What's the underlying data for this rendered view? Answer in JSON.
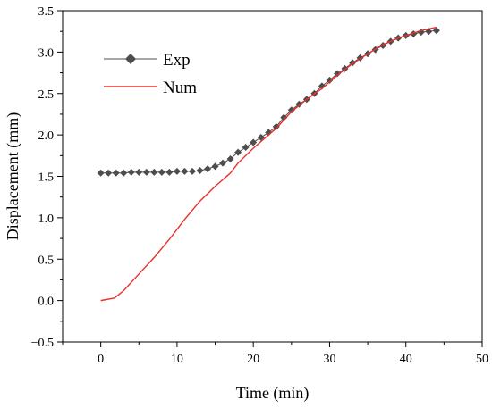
{
  "chart_data": {
    "type": "line",
    "xlabel": "Time (min)",
    "ylabel": "Displacement (mm)",
    "xlim": [
      -5,
      50
    ],
    "ylim": [
      -0.5,
      3.5
    ],
    "xticks": [
      0,
      10,
      20,
      30,
      40,
      50
    ],
    "yticks": [
      -0.5,
      0.0,
      0.5,
      1.0,
      1.5,
      2.0,
      2.5,
      3.0,
      3.5
    ],
    "ytick_labels": [
      "−0.5",
      "0.0",
      "0.5",
      "1.0",
      "1.5",
      "2.0",
      "2.5",
      "3.0",
      "3.5"
    ],
    "legend_position": "top-left",
    "series": [
      {
        "name": "Exp",
        "color": "#4d4d4d",
        "marker": "diamond",
        "x": [
          0,
          1,
          2,
          3,
          4,
          5,
          6,
          7,
          8,
          9,
          10,
          11,
          12,
          13,
          14,
          15,
          16,
          17,
          18,
          19,
          20,
          21,
          22,
          23,
          24,
          25,
          26,
          27,
          28,
          29,
          30,
          31,
          32,
          33,
          34,
          35,
          36,
          37,
          38,
          39,
          40,
          41,
          42,
          43,
          44
        ],
        "y": [
          1.54,
          1.54,
          1.54,
          1.54,
          1.55,
          1.55,
          1.55,
          1.55,
          1.55,
          1.55,
          1.56,
          1.56,
          1.56,
          1.57,
          1.59,
          1.62,
          1.66,
          1.71,
          1.79,
          1.85,
          1.91,
          1.97,
          2.03,
          2.1,
          2.21,
          2.3,
          2.37,
          2.43,
          2.5,
          2.59,
          2.66,
          2.74,
          2.8,
          2.87,
          2.93,
          2.98,
          3.03,
          3.08,
          3.13,
          3.17,
          3.2,
          3.22,
          3.24,
          3.25,
          3.26
        ]
      },
      {
        "name": "Num",
        "color": "#e8302a",
        "marker": "none",
        "x": [
          0,
          1.8,
          3,
          5,
          7,
          9,
          11,
          13,
          15,
          17,
          18,
          20,
          23,
          25,
          27,
          29,
          31,
          33,
          35,
          37,
          39,
          41,
          42,
          44
        ],
        "y": [
          0.0,
          0.03,
          0.12,
          0.32,
          0.52,
          0.74,
          0.98,
          1.2,
          1.38,
          1.54,
          1.66,
          1.84,
          2.08,
          2.28,
          2.43,
          2.56,
          2.72,
          2.86,
          2.98,
          3.09,
          3.17,
          3.23,
          3.26,
          3.3
        ]
      }
    ]
  }
}
